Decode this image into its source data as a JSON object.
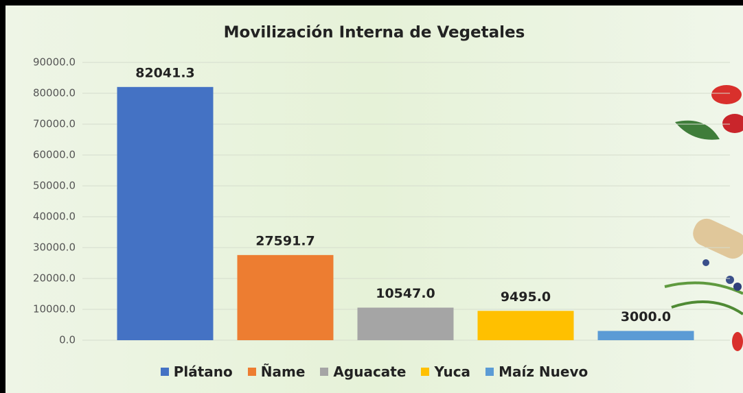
{
  "chart_data": {
    "type": "bar",
    "title": "Movilización Interna de Vegetales",
    "series": [
      {
        "name": "Plátano",
        "color": "#4472c4",
        "values": [
          82041.3
        ],
        "value_labels": [
          "82041.3"
        ]
      },
      {
        "name": "Ñame",
        "color": "#ed7d31",
        "values": [
          27591.7
        ],
        "value_labels": [
          "27591.7"
        ]
      },
      {
        "name": "Aguacate",
        "color": "#a5a5a5",
        "values": [
          10547.0
        ],
        "value_labels": [
          "10547.0"
        ]
      },
      {
        "name": "Yuca",
        "color": "#ffc000",
        "values": [
          9495.0
        ],
        "value_labels": [
          "9495.0"
        ]
      },
      {
        "name": "Maíz Nuevo",
        "color": "#5b9bd5",
        "values": [
          3000.0
        ],
        "value_labels": [
          "3000.0"
        ]
      }
    ],
    "ylim": [
      0,
      90000
    ],
    "yticks": [
      {
        "value": 0,
        "label": "0.0"
      },
      {
        "value": 10000,
        "label": "10000.0"
      },
      {
        "value": 20000,
        "label": "20000.0"
      },
      {
        "value": 30000,
        "label": "30000.0"
      },
      {
        "value": 40000,
        "label": "40000.0"
      },
      {
        "value": 50000,
        "label": "50000.0"
      },
      {
        "value": 60000,
        "label": "60000.0"
      },
      {
        "value": 70000,
        "label": "70000.0"
      },
      {
        "value": 80000,
        "label": "80000.0"
      },
      {
        "value": 90000,
        "label": "90000.0"
      }
    ],
    "grid": true,
    "legend": "bottom"
  }
}
